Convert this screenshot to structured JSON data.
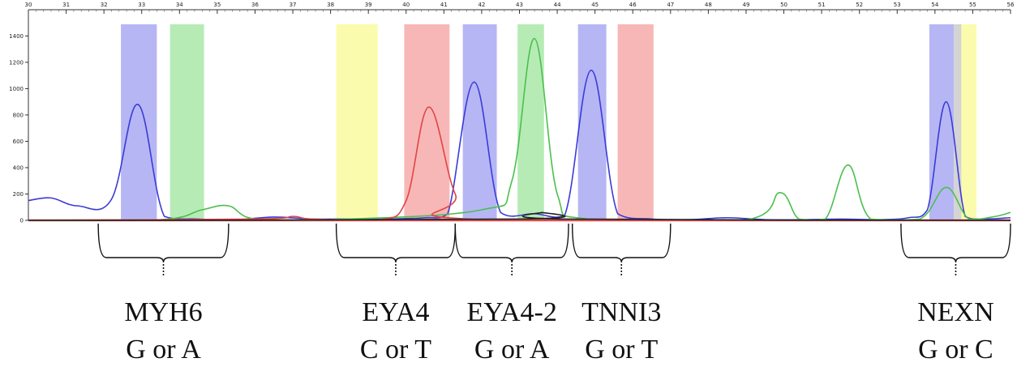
{
  "chart_data": {
    "type": "line",
    "title": "",
    "xlabel": "",
    "ylabel": "",
    "x_ticks": [
      30,
      31,
      32,
      33,
      34,
      35,
      36,
      37,
      38,
      39,
      40,
      41,
      42,
      43,
      44,
      45,
      46,
      47,
      48,
      49,
      50,
      51,
      52,
      53,
      54,
      55,
      56
    ],
    "y_ticks": [
      0,
      200,
      400,
      600,
      800,
      1000,
      1200,
      1400
    ],
    "xlim": [
      30,
      56
    ],
    "ylim": [
      0,
      1550
    ],
    "grid": false,
    "bands": [
      {
        "x0": 32.45,
        "x1": 33.4,
        "color": "blue"
      },
      {
        "x0": 33.75,
        "x1": 34.65,
        "color": "green"
      },
      {
        "x0": 38.15,
        "x1": 39.25,
        "color": "yellow"
      },
      {
        "x0": 39.95,
        "x1": 41.15,
        "color": "red"
      },
      {
        "x0": 41.5,
        "x1": 42.4,
        "color": "blue"
      },
      {
        "x0": 42.95,
        "x1": 43.65,
        "color": "green"
      },
      {
        "x0": 44.55,
        "x1": 45.3,
        "color": "blue"
      },
      {
        "x0": 45.6,
        "x1": 46.55,
        "color": "red"
      },
      {
        "x0": 53.85,
        "x1": 54.5,
        "color": "blue"
      },
      {
        "x0": 54.5,
        "x1": 54.7,
        "color": "gray"
      },
      {
        "x0": 54.7,
        "x1": 55.1,
        "color": "yellow"
      }
    ],
    "series": [
      {
        "color": "blue",
        "x": [
          30,
          30.6,
          31.3,
          32.2,
          32.9,
          33.6,
          34.5,
          35.5,
          36.5,
          37.5,
          38.5,
          39.5,
          40.5,
          41.1,
          41.8,
          42.5,
          43.4,
          44.2,
          44.9,
          45.6,
          46.5,
          47.5,
          48.5,
          49.5,
          50.5,
          51.5,
          52.5,
          53.3,
          53.8,
          54.3,
          54.8,
          55.3,
          56
        ],
        "y": [
          150,
          170,
          110,
          160,
          880,
          30,
          10,
          5,
          25,
          10,
          10,
          10,
          20,
          50,
          1050,
          60,
          50,
          40,
          1140,
          50,
          10,
          5,
          20,
          5,
          5,
          10,
          5,
          20,
          80,
          900,
          30,
          10,
          20
        ]
      },
      {
        "color": "green",
        "x": [
          30,
          33.5,
          34.6,
          35.3,
          36,
          38,
          42,
          42.8,
          43.4,
          44,
          44.8,
          49,
          49.9,
          50.4,
          51.1,
          51.7,
          52.3,
          53.6,
          54.3,
          54.9,
          55.6,
          56
        ],
        "y": [
          0,
          5,
          80,
          110,
          10,
          5,
          80,
          300,
          1380,
          200,
          10,
          5,
          210,
          10,
          10,
          420,
          10,
          10,
          250,
          10,
          30,
          60
        ]
      },
      {
        "color": "red",
        "x": [
          30,
          36,
          37,
          37.5,
          39.3,
          40,
          40.6,
          41.3,
          42,
          56
        ],
        "y": [
          0,
          10,
          30,
          10,
          5,
          150,
          860,
          200,
          5,
          0
        ]
      },
      {
        "color": "black",
        "x": [
          30,
          43,
          43.6,
          44.2,
          56
        ],
        "y": [
          0,
          10,
          60,
          10,
          0
        ]
      }
    ],
    "annotations": [
      {
        "lines": [
          "MYH6",
          "G or A"
        ],
        "x0": 31.85,
        "x1": 35.3
      },
      {
        "lines": [
          "EYA4",
          "C or T"
        ],
        "x0": 38.15,
        "x1": 41.3
      },
      {
        "lines": [
          "EYA4-2",
          "G or A"
        ],
        "x0": 41.3,
        "x1": 44.3
      },
      {
        "lines": [
          "TNNI3",
          "G or T"
        ],
        "x0": 44.4,
        "x1": 47
      },
      {
        "lines": [
          "NEXN",
          "G or C"
        ],
        "x0": 53.1,
        "x1": 56
      }
    ]
  },
  "colors": {
    "blue": "#3b3bd6",
    "green": "#4cbf4c",
    "red": "#e04545",
    "black": "#222222",
    "band_blue": "#a9a9f3",
    "band_green": "#a9e8a9",
    "band_yellow": "#fafaa0",
    "band_red": "#f7aaaa",
    "band_gray": "#cccccc",
    "baseline": "#e05050"
  }
}
